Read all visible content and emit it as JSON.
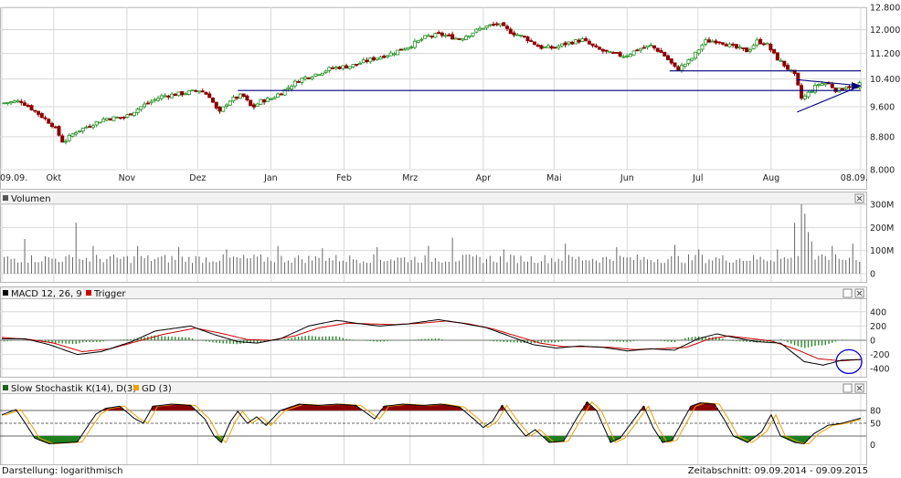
{
  "footer": {
    "scale_label": "Darstellung: logarithmisch",
    "period_label": "Zeitabschnitt: 09.09.2014 - 09.09.2015"
  },
  "colors": {
    "up": "#1f8f1f",
    "down": "#8b0000",
    "macd": "#000000",
    "trigger": "#cc0000",
    "histogram": "#2e8b2e",
    "stoch_k": "#000000",
    "stoch_gd": "#f0a000",
    "trendline": "#000080",
    "circle": "#0000cc",
    "grid": "#d8d8d8",
    "fill_high": "#8b0000",
    "fill_low": "#1f7f1f"
  },
  "chart_data": [
    {
      "type": "candlestick",
      "id": "price",
      "scale": "log",
      "ylim": [
        8000,
        12800
      ],
      "y_ticks": [
        "12.800",
        "12.000",
        "11.200",
        "10.400",
        "9.600",
        "8.800",
        "8.000"
      ],
      "y_tick_values": [
        12800,
        12000,
        11200,
        10400,
        9600,
        8800,
        8000
      ],
      "x_ticks": [
        "09.09.",
        "Okt",
        "Nov",
        "Dez",
        "Jan",
        "Feb",
        "Mrz",
        "Apr",
        "Mai",
        "Jun",
        "Jul",
        "Aug",
        "08.09."
      ],
      "x_tick_days": [
        0,
        22,
        53,
        83,
        114,
        145,
        173,
        204,
        234,
        265,
        295,
        326,
        364
      ],
      "anchors_day_close": [
        [
          0,
          9700
        ],
        [
          8,
          9760
        ],
        [
          14,
          9480
        ],
        [
          22,
          9080
        ],
        [
          26,
          8650
        ],
        [
          31,
          8920
        ],
        [
          38,
          9120
        ],
        [
          44,
          9280
        ],
        [
          52,
          9310
        ],
        [
          60,
          9640
        ],
        [
          68,
          9900
        ],
        [
          78,
          9990
        ],
        [
          84,
          10070
        ],
        [
          88,
          9900
        ],
        [
          92,
          9400
        ],
        [
          96,
          9760
        ],
        [
          102,
          9930
        ],
        [
          106,
          9560
        ],
        [
          110,
          9770
        ],
        [
          114,
          9820
        ],
        [
          120,
          10080
        ],
        [
          126,
          10380
        ],
        [
          133,
          10550
        ],
        [
          140,
          10740
        ],
        [
          148,
          10800
        ],
        [
          157,
          11020
        ],
        [
          165,
          11200
        ],
        [
          173,
          11450
        ],
        [
          180,
          11760
        ],
        [
          186,
          11830
        ],
        [
          194,
          11680
        ],
        [
          204,
          12080
        ],
        [
          210,
          12200
        ],
        [
          216,
          11900
        ],
        [
          222,
          11720
        ],
        [
          228,
          11400
        ],
        [
          234,
          11380
        ],
        [
          240,
          11550
        ],
        [
          246,
          11650
        ],
        [
          252,
          11350
        ],
        [
          258,
          11190
        ],
        [
          264,
          11120
        ],
        [
          270,
          11350
        ],
        [
          275,
          11450
        ],
        [
          280,
          11200
        ],
        [
          286,
          10680
        ],
        [
          292,
          11000
        ],
        [
          298,
          11600
        ],
        [
          304,
          11620
        ],
        [
          310,
          11400
        ],
        [
          316,
          11280
        ],
        [
          320,
          11600
        ],
        [
          324,
          11520
        ],
        [
          328,
          11080
        ],
        [
          332,
          10800
        ],
        [
          336,
          10500
        ],
        [
          339,
          9800
        ],
        [
          342,
          10000
        ],
        [
          346,
          10250
        ],
        [
          350,
          10280
        ],
        [
          354,
          10050
        ],
        [
          358,
          10200
        ],
        [
          362,
          10130
        ],
        [
          364,
          10271
        ]
      ],
      "horizontal_lines": [
        {
          "value": 10060,
          "from_day": 100,
          "to_day": 364
        },
        {
          "value": 10650,
          "from_day": 283,
          "to_day": 364
        }
      ],
      "triangle": {
        "apex_day": 364,
        "apex_value": 10200,
        "left_day": 337,
        "top_value": 10380,
        "bottom_value": 9450
      }
    },
    {
      "type": "bar",
      "id": "volume",
      "title": "Volumen",
      "ylim": [
        0,
        300000000
      ],
      "y_ticks": [
        "300M",
        "200M",
        "100M",
        "0"
      ],
      "y_tick_values": [
        300000000,
        200000000,
        100000000,
        0
      ],
      "typical_volume": 70000000,
      "spikes_day_value": [
        [
          10,
          150000000
        ],
        [
          32,
          220000000
        ],
        [
          40,
          120000000
        ],
        [
          58,
          120000000
        ],
        [
          76,
          115000000
        ],
        [
          96,
          105000000
        ],
        [
          118,
          120000000
        ],
        [
          136,
          110000000
        ],
        [
          160,
          115000000
        ],
        [
          182,
          120000000
        ],
        [
          192,
          155000000
        ],
        [
          214,
          105000000
        ],
        [
          240,
          130000000
        ],
        [
          262,
          115000000
        ],
        [
          286,
          125000000
        ],
        [
          296,
          105000000
        ],
        [
          330,
          105000000
        ],
        [
          337,
          220000000
        ],
        [
          339,
          300000000
        ],
        [
          340,
          260000000
        ],
        [
          342,
          180000000
        ],
        [
          344,
          140000000
        ],
        [
          352,
          120000000
        ],
        [
          362,
          130000000
        ]
      ]
    },
    {
      "type": "line",
      "id": "macd",
      "title": "MACD 12, 26, 9",
      "legend_trigger": "Trigger",
      "ylim": [
        -500,
        500
      ],
      "y_ticks": [
        "400",
        "200",
        "0",
        "-200",
        "-400"
      ],
      "y_tick_values": [
        400,
        200,
        0,
        -200,
        -400
      ],
      "macd_anchors": [
        [
          0,
          20
        ],
        [
          10,
          20
        ],
        [
          20,
          -60
        ],
        [
          32,
          -200
        ],
        [
          42,
          -160
        ],
        [
          55,
          -20
        ],
        [
          65,
          130
        ],
        [
          80,
          200
        ],
        [
          90,
          80
        ],
        [
          100,
          -20
        ],
        [
          108,
          -40
        ],
        [
          118,
          20
        ],
        [
          130,
          200
        ],
        [
          142,
          280
        ],
        [
          150,
          240
        ],
        [
          160,
          200
        ],
        [
          172,
          230
        ],
        [
          185,
          290
        ],
        [
          195,
          240
        ],
        [
          205,
          180
        ],
        [
          215,
          60
        ],
        [
          225,
          -60
        ],
        [
          235,
          -110
        ],
        [
          245,
          -80
        ],
        [
          255,
          -100
        ],
        [
          265,
          -150
        ],
        [
          275,
          -120
        ],
        [
          285,
          -140
        ],
        [
          295,
          20
        ],
        [
          303,
          90
        ],
        [
          310,
          40
        ],
        [
          320,
          -20
        ],
        [
          330,
          -40
        ],
        [
          340,
          -300
        ],
        [
          348,
          -350
        ],
        [
          356,
          -280
        ],
        [
          364,
          -270
        ]
      ],
      "trigger_anchors": [
        [
          0,
          40
        ],
        [
          12,
          10
        ],
        [
          22,
          -40
        ],
        [
          34,
          -160
        ],
        [
          46,
          -120
        ],
        [
          58,
          -10
        ],
        [
          68,
          80
        ],
        [
          82,
          170
        ],
        [
          94,
          90
        ],
        [
          104,
          10
        ],
        [
          114,
          0
        ],
        [
          124,
          60
        ],
        [
          134,
          170
        ],
        [
          146,
          240
        ],
        [
          156,
          230
        ],
        [
          166,
          220
        ],
        [
          178,
          240
        ],
        [
          188,
          270
        ],
        [
          198,
          230
        ],
        [
          208,
          160
        ],
        [
          218,
          60
        ],
        [
          228,
          -40
        ],
        [
          238,
          -90
        ],
        [
          248,
          -90
        ],
        [
          258,
          -100
        ],
        [
          268,
          -130
        ],
        [
          278,
          -120
        ],
        [
          290,
          -100
        ],
        [
          300,
          20
        ],
        [
          308,
          60
        ],
        [
          316,
          30
        ],
        [
          326,
          -10
        ],
        [
          336,
          -120
        ],
        [
          346,
          -260
        ],
        [
          356,
          -290
        ],
        [
          364,
          -270
        ]
      ]
    },
    {
      "type": "line",
      "id": "stochastic",
      "title": "Slow Stochastik K(14), D(3)",
      "legend_gd": "GD (3)",
      "ylim": [
        -10,
        110
      ],
      "y_ticks": [
        "80",
        "50",
        "0"
      ],
      "y_tick_values": [
        80,
        50,
        0
      ],
      "levels": [
        80,
        50,
        20
      ],
      "k_anchors": [
        [
          0,
          70
        ],
        [
          6,
          82
        ],
        [
          10,
          50
        ],
        [
          14,
          15
        ],
        [
          20,
          2
        ],
        [
          26,
          4
        ],
        [
          32,
          6
        ],
        [
          36,
          40
        ],
        [
          40,
          72
        ],
        [
          44,
          85
        ],
        [
          50,
          90
        ],
        [
          56,
          62
        ],
        [
          60,
          50
        ],
        [
          64,
          90
        ],
        [
          72,
          95
        ],
        [
          80,
          92
        ],
        [
          86,
          60
        ],
        [
          90,
          20
        ],
        [
          93,
          5
        ],
        [
          97,
          55
        ],
        [
          100,
          78
        ],
        [
          104,
          50
        ],
        [
          108,
          65
        ],
        [
          112,
          45
        ],
        [
          118,
          80
        ],
        [
          126,
          95
        ],
        [
          134,
          92
        ],
        [
          142,
          95
        ],
        [
          150,
          92
        ],
        [
          158,
          60
        ],
        [
          162,
          90
        ],
        [
          170,
          95
        ],
        [
          178,
          92
        ],
        [
          186,
          95
        ],
        [
          194,
          88
        ],
        [
          200,
          60
        ],
        [
          204,
          40
        ],
        [
          208,
          55
        ],
        [
          212,
          92
        ],
        [
          216,
          60
        ],
        [
          222,
          20
        ],
        [
          226,
          35
        ],
        [
          232,
          5
        ],
        [
          238,
          8
        ],
        [
          244,
          65
        ],
        [
          248,
          100
        ],
        [
          252,
          80
        ],
        [
          258,
          5
        ],
        [
          262,
          15
        ],
        [
          268,
          60
        ],
        [
          272,
          90
        ],
        [
          276,
          40
        ],
        [
          280,
          5
        ],
        [
          284,
          10
        ],
        [
          292,
          90
        ],
        [
          296,
          98
        ],
        [
          302,
          95
        ],
        [
          306,
          60
        ],
        [
          310,
          20
        ],
        [
          316,
          5
        ],
        [
          322,
          30
        ],
        [
          326,
          70
        ],
        [
          330,
          20
        ],
        [
          336,
          5
        ],
        [
          340,
          2
        ],
        [
          344,
          25
        ],
        [
          350,
          45
        ],
        [
          356,
          50
        ],
        [
          364,
          62
        ]
      ],
      "gd_lag_days": 2
    }
  ]
}
